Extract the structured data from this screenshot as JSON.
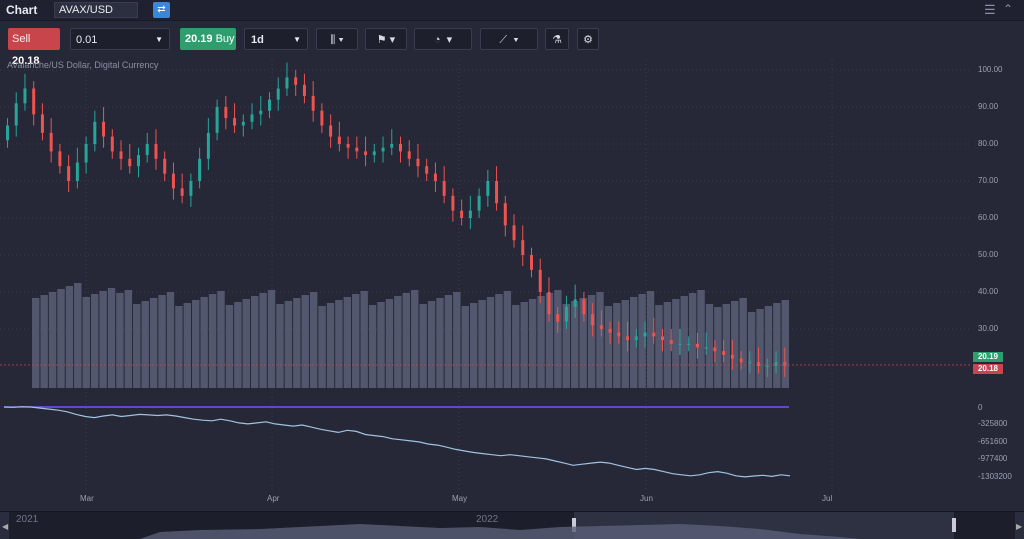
{
  "window": {
    "title": "Chart",
    "symbol": "AVAX/USD"
  },
  "toolbar": {
    "sell_label": "Sell",
    "sell_price": "20.18",
    "quantity": "0.01",
    "buy_price": "20.19",
    "buy_label": "Buy",
    "period": "1d",
    "colors": {
      "sell": "#c8454b",
      "buy": "#2e9e6e"
    }
  },
  "chart": {
    "subtitle": "Avalanche/US Dollar, Digital Currency",
    "price_axis": [
      "100.00",
      "90.00",
      "80.00",
      "70.00",
      "60.00",
      "50.00",
      "40.00",
      "30.00"
    ],
    "indicator_axis": [
      "0",
      "-325800",
      "-651600",
      "-977400",
      "-1303200"
    ],
    "time_axis": [
      "Mar",
      "Apr",
      "May",
      "Jun",
      "Jul"
    ],
    "bid_tag": "20.19",
    "ask_tag": "20.18",
    "colors": {
      "up": "#26a69a",
      "down": "#ef5350",
      "volume": "#5a5f78",
      "indicator": "#9fc2e0",
      "zero_line": "#7c4dff"
    }
  },
  "navigator": {
    "years": [
      "2021",
      "2022"
    ]
  },
  "chart_data": {
    "type": "candlestick",
    "x_start": "2022-02-01",
    "x_end": "2022-06-20",
    "x_axis_labels": [
      "Mar",
      "Apr",
      "May",
      "Jun",
      "Jul"
    ],
    "y_axis_labels": [
      30,
      40,
      50,
      60,
      70,
      80,
      90,
      100
    ],
    "ylim": [
      18,
      102
    ],
    "close": [
      85,
      91,
      95,
      88,
      83,
      78,
      74,
      70,
      75,
      80,
      86,
      82,
      78,
      76,
      74,
      77,
      80,
      76,
      72,
      68,
      66,
      70,
      76,
      83,
      90,
      87,
      85,
      86,
      88,
      89,
      92,
      95,
      98,
      96,
      93,
      89,
      85,
      82,
      80,
      79,
      78,
      77,
      78,
      79,
      80,
      78,
      76,
      74,
      72,
      70,
      66,
      62,
      60,
      62,
      66,
      70,
      64,
      58,
      54,
      50,
      46,
      40,
      34,
      32,
      36,
      38,
      34,
      31,
      30,
      29,
      28,
      27,
      28,
      29,
      28,
      27,
      26,
      26,
      26,
      25,
      25,
      24,
      23,
      22,
      21,
      21,
      20,
      20,
      21,
      20
    ],
    "volume_axis_note": "volume bars shown behind price",
    "indicator_axis_labels": [
      0,
      -325800,
      -651600,
      -977400,
      -1303200
    ],
    "bid": 20.19,
    "ask": 20.18
  }
}
